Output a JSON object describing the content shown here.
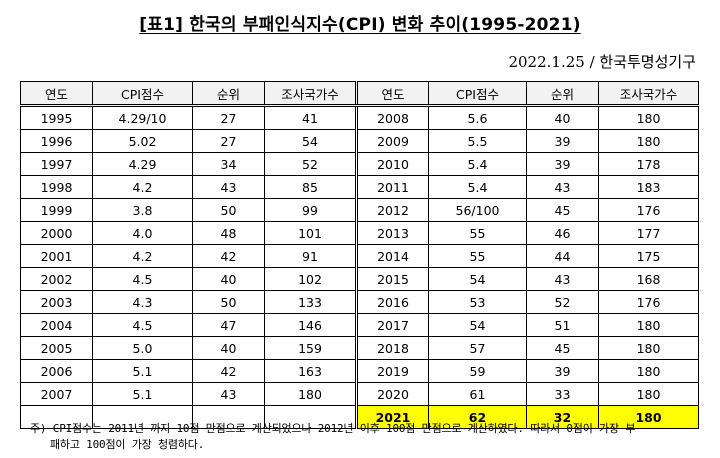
{
  "document": {
    "title": "[표1] 한국의 부패인식지수(CPI) 변화 추이(1995-2021)",
    "source": "2022.1.25 / 한국투명성기구"
  },
  "table": {
    "headers": [
      "연도",
      "CPI점수",
      "순위",
      "조사국가수",
      "연도",
      "CPI점수",
      "순위",
      "조사국가수"
    ],
    "rows": [
      [
        [
          "1995",
          "4.29/10",
          "27",
          "41"
        ],
        [
          "2008",
          "5.6",
          "40",
          "180"
        ]
      ],
      [
        [
          "1996",
          "5.02",
          "27",
          "54"
        ],
        [
          "2009",
          "5.5",
          "39",
          "180"
        ]
      ],
      [
        [
          "1997",
          "4.29",
          "34",
          "52"
        ],
        [
          "2010",
          "5.4",
          "39",
          "178"
        ]
      ],
      [
        [
          "1998",
          "4.2",
          "43",
          "85"
        ],
        [
          "2011",
          "5.4",
          "43",
          "183"
        ]
      ],
      [
        [
          "1999",
          "3.8",
          "50",
          "99"
        ],
        [
          "2012",
          "56/100",
          "45",
          "176"
        ]
      ],
      [
        [
          "2000",
          "4.0",
          "48",
          "101"
        ],
        [
          "2013",
          "55",
          "46",
          "177"
        ]
      ],
      [
        [
          "2001",
          "4.2",
          "42",
          "91"
        ],
        [
          "2014",
          "55",
          "44",
          "175"
        ]
      ],
      [
        [
          "2002",
          "4.5",
          "40",
          "102"
        ],
        [
          "2015",
          "54",
          "43",
          "168"
        ]
      ],
      [
        [
          "2003",
          "4.3",
          "50",
          "133"
        ],
        [
          "2016",
          "53",
          "52",
          "176"
        ]
      ],
      [
        [
          "2004",
          "4.5",
          "47",
          "146"
        ],
        [
          "2017",
          "54",
          "51",
          "180"
        ]
      ],
      [
        [
          "2005",
          "5.0",
          "40",
          "159"
        ],
        [
          "2018",
          "57",
          "45",
          "180"
        ]
      ],
      [
        [
          "2006",
          "5.1",
          "42",
          "163"
        ],
        [
          "2019",
          "59",
          "39",
          "180"
        ]
      ],
      [
        [
          "2007",
          "5.1",
          "43",
          "180"
        ],
        [
          "2020",
          "61",
          "33",
          "180"
        ]
      ],
      [
        [
          "",
          "",
          "",
          ""
        ],
        [
          "2021",
          "62",
          "32",
          "180"
        ]
      ]
    ],
    "highlight_color": "#ffff00"
  },
  "note": {
    "line1": "주) CPI점수는 2011년 까지 10점 만점으로 계산되었으나 2012년 이후 100점 만점으로 계산하였다. 따라서 0점이 가장 부",
    "line2": "패하고 100점이 가장 청렴하다."
  }
}
